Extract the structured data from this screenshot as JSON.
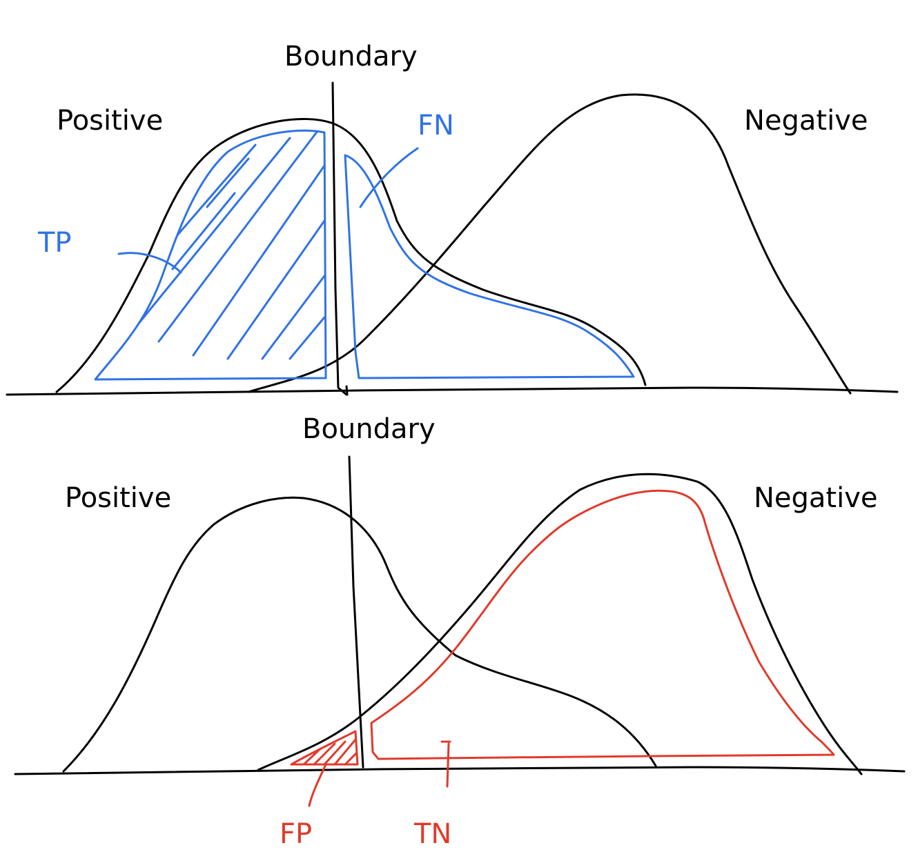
{
  "colors": {
    "ink": "#000000",
    "blue": "#2f73e6",
    "red": "#e03a2a",
    "background": "#ffffff"
  },
  "top_panel": {
    "boundary_label": "Boundary",
    "positive_label": "Positive",
    "negative_label": "Negative",
    "tp_label": "TP",
    "fn_label": "FN"
  },
  "bottom_panel": {
    "boundary_label": "Boundary",
    "positive_label": "Positive",
    "negative_label": "Negative",
    "fp_label": "FP",
    "tn_label": "TN"
  }
}
